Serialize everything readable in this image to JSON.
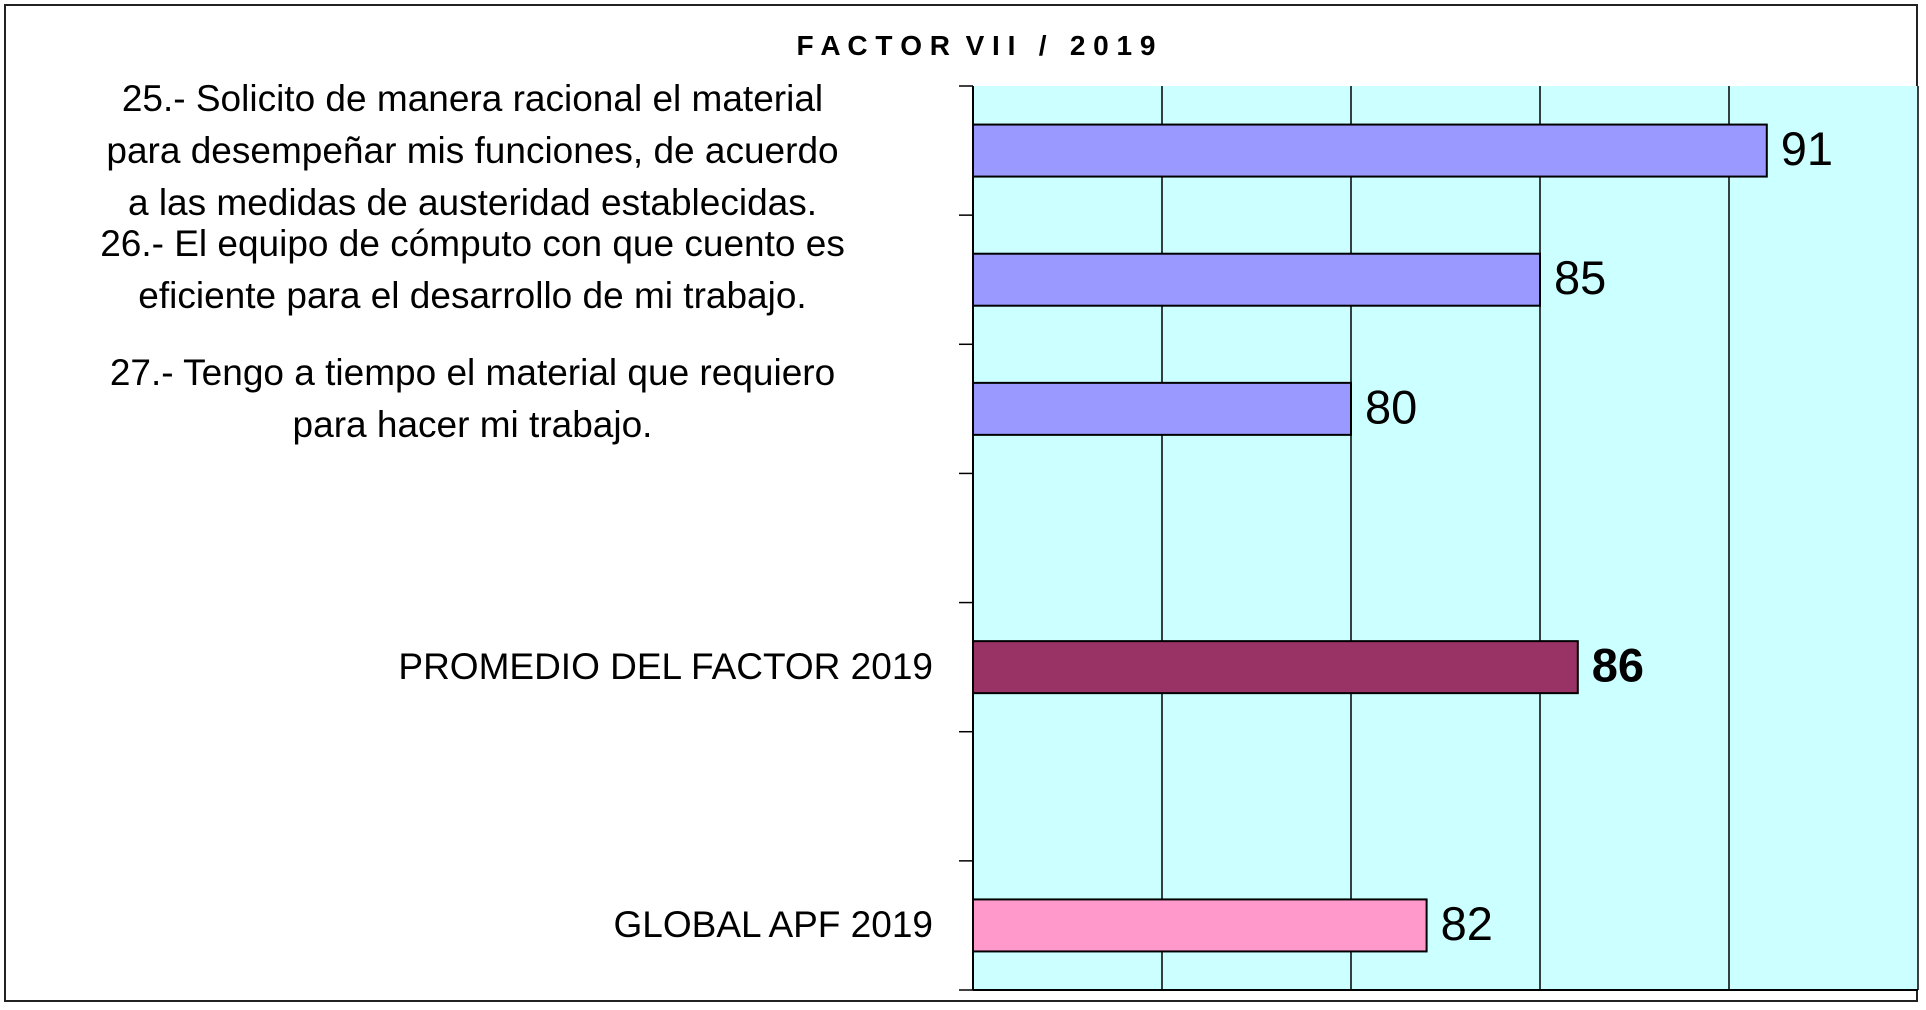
{
  "chart_data": {
    "type": "bar",
    "orientation": "horizontal",
    "title": "F A C T O R  V I I   /   2 0 1 9",
    "categories": [
      "25.- Solicito de manera racional el material\npara desempeñar mis funciones, de acuerdo\na las medidas de austeridad establecidas.",
      "26.- El equipo de cómputo con que cuento es\neficiente para el desarrollo de mi trabajo.",
      "27.- Tengo a tiempo el material que requiero\npara hacer mi trabajo.",
      null,
      "PROMEDIO DEL FACTOR   2019",
      null,
      "GLOBAL APF   2019"
    ],
    "values": [
      91,
      85,
      80,
      null,
      86,
      null,
      82
    ],
    "colors": [
      "#9999ff",
      "#9999ff",
      "#9999ff",
      null,
      "#993366",
      null,
      "#ff99cc"
    ],
    "xlim": [
      70,
      95
    ],
    "xticks": [
      70,
      75,
      80,
      85,
      90,
      95
    ],
    "grid": true,
    "plot_background": "#ccffff"
  }
}
